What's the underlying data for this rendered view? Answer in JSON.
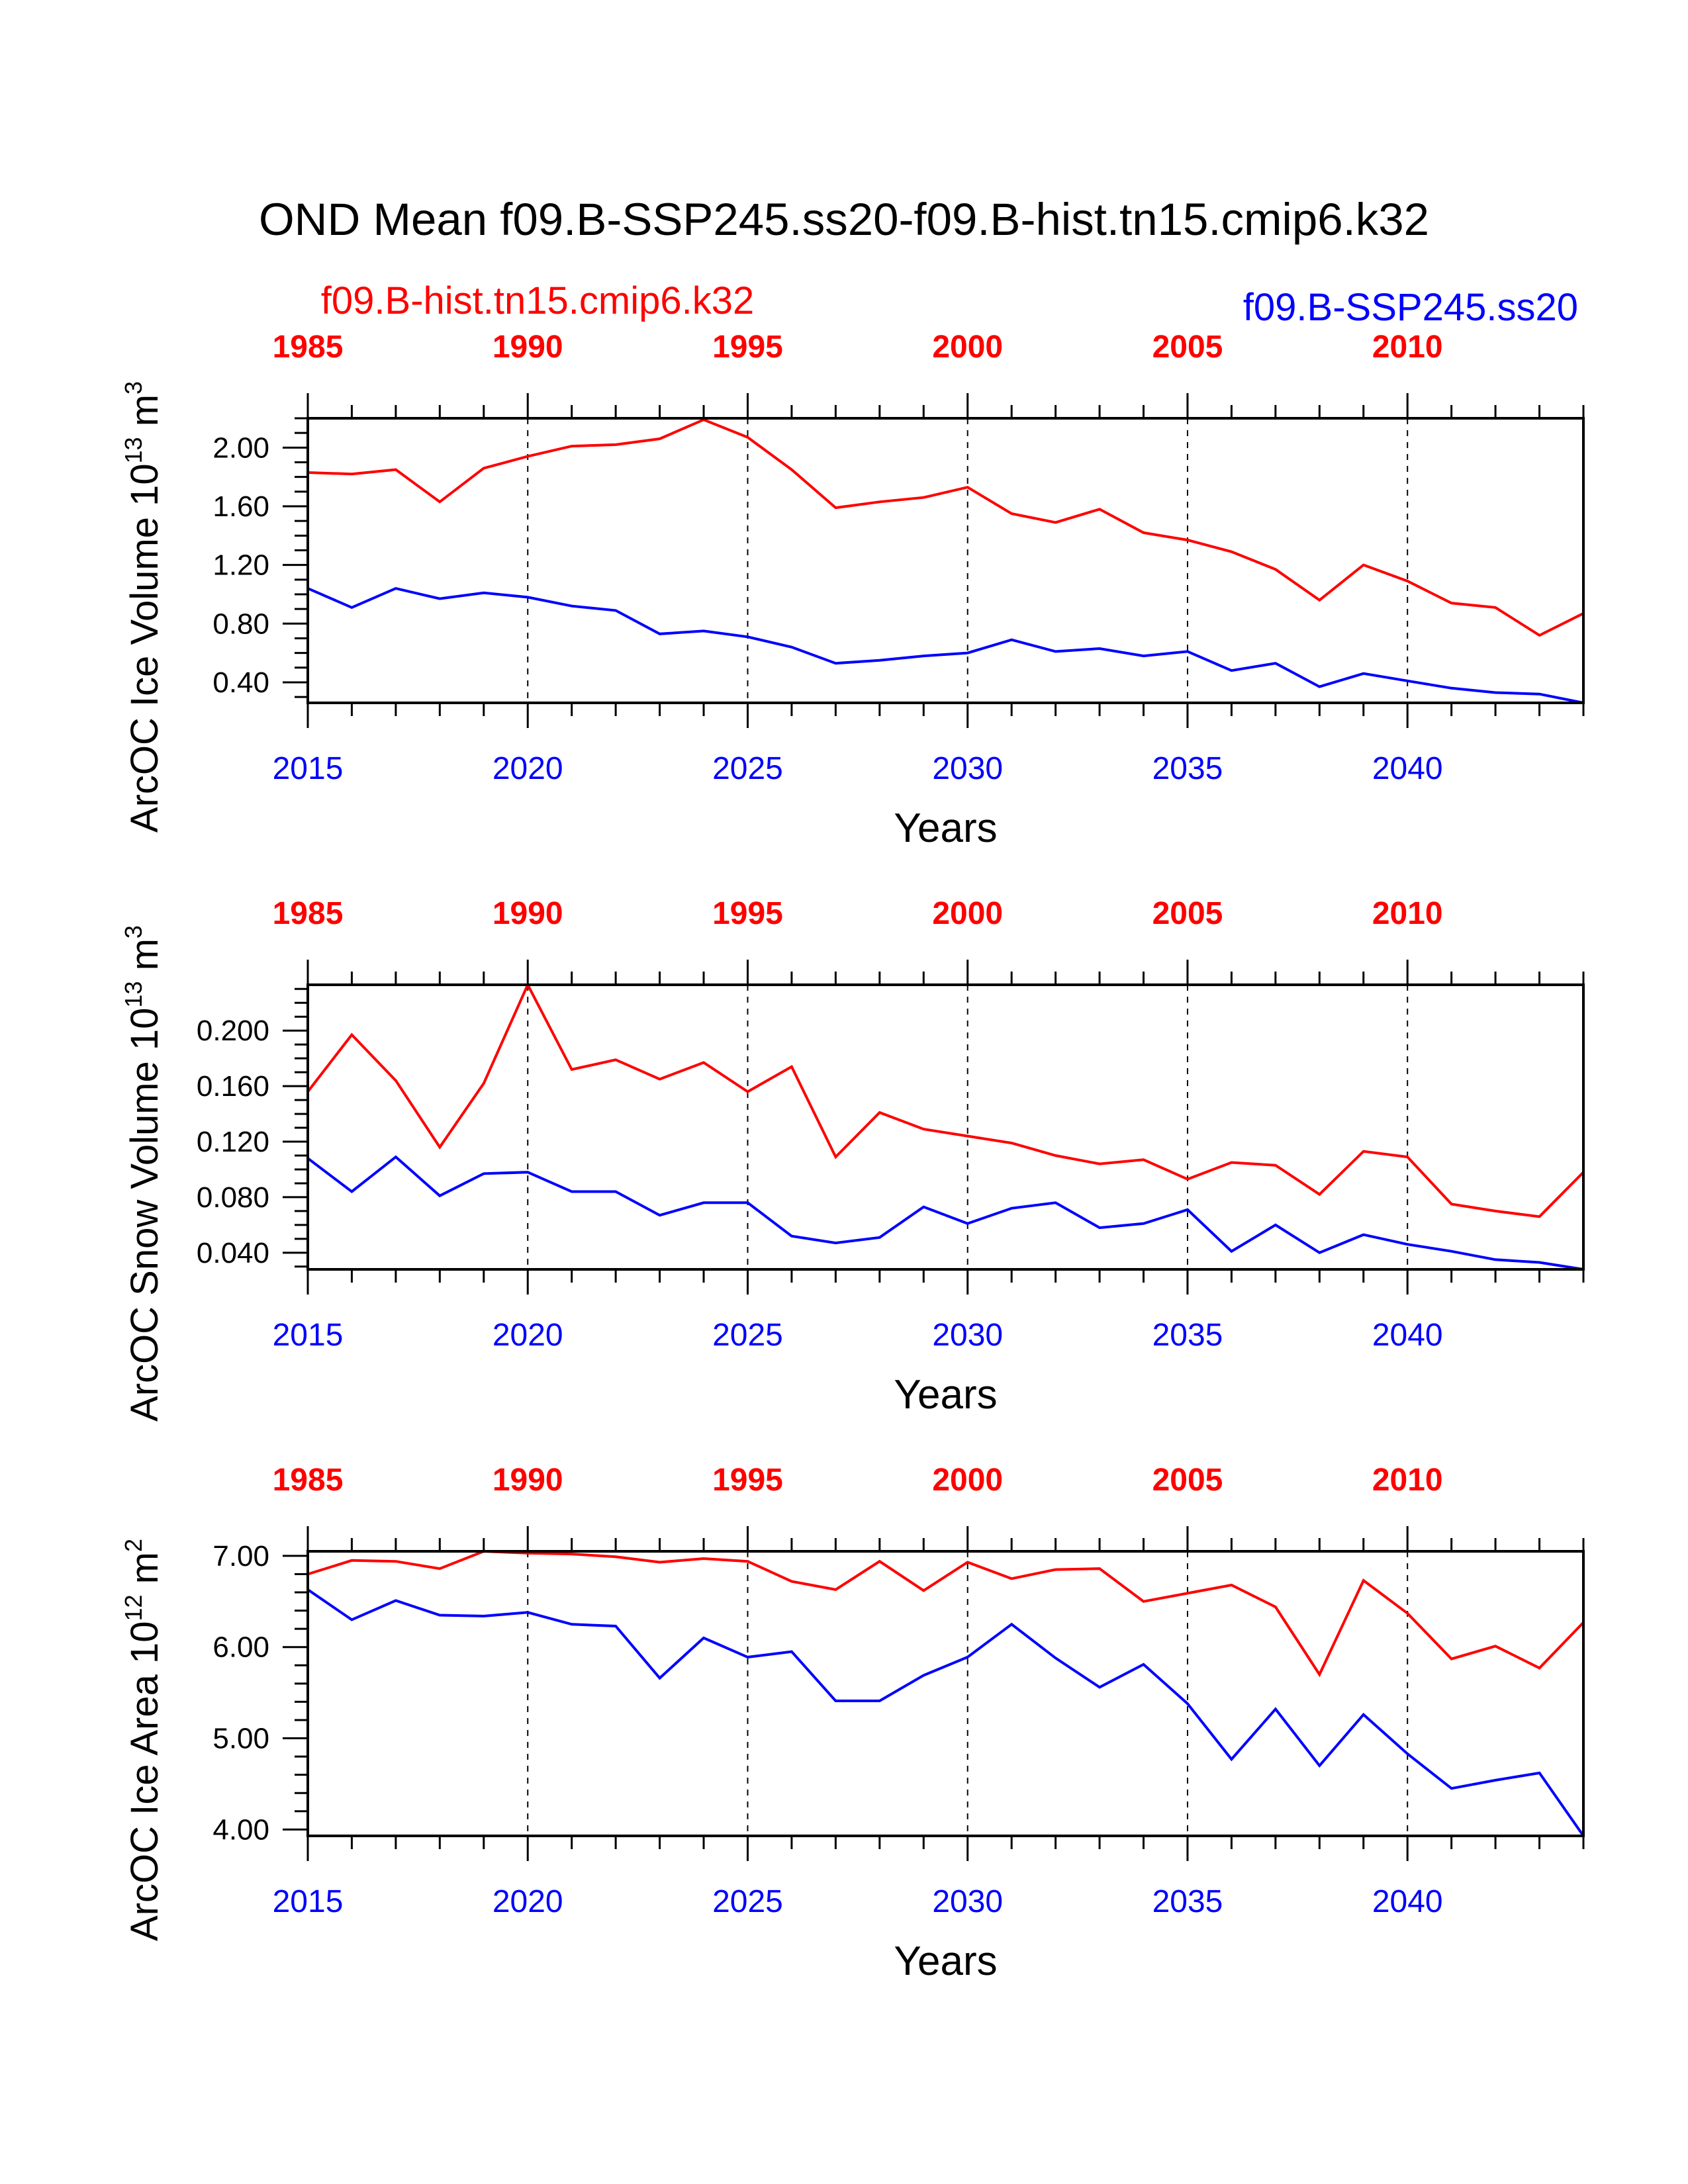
{
  "title": "OND Mean f09.B-SSP245.ss20-f09.B-hist.tn15.cmip6.k32",
  "cases": {
    "historical": {
      "label": "f09.B-hist.tn15.cmip6.k32",
      "color": "#ff0000"
    },
    "scenario": {
      "label": "f09.B-SSP245.ss20",
      "color": "#0000ff"
    }
  },
  "panels": [
    {
      "ylabel": {
        "main": "ArcOC Ice Volume 10",
        "exp": "13",
        "unit": " m",
        "unit_exp": "3"
      },
      "xlabel": "Years"
    },
    {
      "ylabel": {
        "main": "ArcOC Snow Volume 10",
        "exp": "13",
        "unit": " m",
        "unit_exp": "3"
      },
      "xlabel": "Years"
    },
    {
      "ylabel": {
        "main": "ArcOC Ice Area 10",
        "exp": "12",
        "unit": " m",
        "unit_exp": "2"
      },
      "xlabel": "Years"
    }
  ],
  "chart_data": [
    {
      "type": "line",
      "ylabel": "ArcOC Ice Volume 10^13 m^3",
      "xlabel": "Years",
      "x_bottom": {
        "range": [
          2015,
          2044
        ],
        "ticks": [
          "2015",
          "2020",
          "2025",
          "2030",
          "2035",
          "2040"
        ],
        "color": "#0000ff"
      },
      "x_top": {
        "range": [
          1985,
          2014
        ],
        "ticks": [
          "1985",
          "1990",
          "1995",
          "2000",
          "2005",
          "2010"
        ],
        "color": "#ff0000"
      },
      "ylim": [
        0.26,
        2.2
      ],
      "y_ticks": [
        "0.40",
        "0.80",
        "1.20",
        "1.60",
        "2.00"
      ],
      "y_tick_values": [
        0.4,
        0.8,
        1.2,
        1.6,
        2.0
      ],
      "y_minor_step": 0.1,
      "grid": "dashed vertical lines at major x ticks",
      "series": [
        {
          "name": "f09.B-hist.tn15.cmip6.k32",
          "color": "#ff0000",
          "x": [
            1985,
            1986,
            1987,
            1988,
            1989,
            1990,
            1991,
            1992,
            1993,
            1994,
            1995,
            1996,
            1997,
            1998,
            1999,
            2000,
            2001,
            2002,
            2003,
            2004,
            2005,
            2006,
            2007,
            2008,
            2009,
            2010,
            2011,
            2012,
            2013,
            2014
          ],
          "values": [
            1.83,
            1.82,
            1.85,
            1.63,
            1.86,
            1.94,
            2.01,
            2.02,
            2.06,
            2.19,
            2.07,
            1.85,
            1.59,
            1.63,
            1.66,
            1.73,
            1.55,
            1.49,
            1.58,
            1.42,
            1.37,
            1.29,
            1.17,
            0.96,
            1.2,
            1.09,
            0.94,
            0.91,
            0.72,
            0.87
          ]
        },
        {
          "name": "f09.B-SSP245.ss20",
          "color": "#0000ff",
          "x": [
            2015,
            2016,
            2017,
            2018,
            2019,
            2020,
            2021,
            2022,
            2023,
            2024,
            2025,
            2026,
            2027,
            2028,
            2029,
            2030,
            2031,
            2032,
            2033,
            2034,
            2035,
            2036,
            2037,
            2038,
            2039,
            2040,
            2041,
            2042,
            2043,
            2044
          ],
          "values": [
            1.04,
            0.91,
            1.04,
            0.97,
            1.01,
            0.98,
            0.92,
            0.89,
            0.73,
            0.75,
            0.71,
            0.64,
            0.53,
            0.55,
            0.58,
            0.6,
            0.69,
            0.61,
            0.63,
            0.58,
            0.61,
            0.48,
            0.53,
            0.37,
            0.46,
            0.41,
            0.36,
            0.33,
            0.32,
            0.26
          ]
        }
      ]
    },
    {
      "type": "line",
      "ylabel": "ArcOC Snow Volume 10^13 m^3",
      "xlabel": "Years",
      "x_bottom": {
        "range": [
          2015,
          2044
        ],
        "ticks": [
          "2015",
          "2020",
          "2025",
          "2030",
          "2035",
          "2040"
        ],
        "color": "#0000ff"
      },
      "x_top": {
        "range": [
          1985,
          2014
        ],
        "ticks": [
          "1985",
          "1990",
          "1995",
          "2000",
          "2005",
          "2010"
        ],
        "color": "#ff0000"
      },
      "ylim": [
        0.028,
        0.233
      ],
      "y_ticks": [
        "0.040",
        "0.080",
        "0.120",
        "0.160",
        "0.200"
      ],
      "y_tick_values": [
        0.04,
        0.08,
        0.12,
        0.16,
        0.2
      ],
      "y_minor_step": 0.01,
      "grid": "dashed vertical lines at major x ticks",
      "series": [
        {
          "name": "f09.B-hist.tn15.cmip6.k32",
          "color": "#ff0000",
          "x": [
            1985,
            1986,
            1987,
            1988,
            1989,
            1990,
            1991,
            1992,
            1993,
            1994,
            1995,
            1996,
            1997,
            1998,
            1999,
            2000,
            2001,
            2002,
            2003,
            2004,
            2005,
            2006,
            2007,
            2008,
            2009,
            2010,
            2011,
            2012,
            2013,
            2014
          ],
          "values": [
            0.156,
            0.197,
            0.164,
            0.116,
            0.162,
            0.233,
            0.172,
            0.179,
            0.165,
            0.177,
            0.156,
            0.174,
            0.109,
            0.141,
            0.129,
            0.124,
            0.119,
            0.11,
            0.104,
            0.107,
            0.093,
            0.105,
            0.103,
            0.082,
            0.113,
            0.109,
            0.075,
            0.07,
            0.066,
            0.098
          ]
        },
        {
          "name": "f09.B-SSP245.ss20",
          "color": "#0000ff",
          "x": [
            2015,
            2016,
            2017,
            2018,
            2019,
            2020,
            2021,
            2022,
            2023,
            2024,
            2025,
            2026,
            2027,
            2028,
            2029,
            2030,
            2031,
            2032,
            2033,
            2034,
            2035,
            2036,
            2037,
            2038,
            2039,
            2040,
            2041,
            2042,
            2043,
            2044
          ],
          "values": [
            0.108,
            0.084,
            0.109,
            0.081,
            0.097,
            0.098,
            0.084,
            0.084,
            0.067,
            0.076,
            0.076,
            0.052,
            0.047,
            0.051,
            0.073,
            0.061,
            0.072,
            0.076,
            0.058,
            0.061,
            0.071,
            0.041,
            0.06,
            0.04,
            0.053,
            0.046,
            0.041,
            0.035,
            0.033,
            0.028
          ]
        }
      ]
    },
    {
      "type": "line",
      "ylabel": "ArcOC Ice Area 10^12 m^2",
      "xlabel": "Years",
      "x_bottom": {
        "range": [
          2015,
          2044
        ],
        "ticks": [
          "2015",
          "2020",
          "2025",
          "2030",
          "2035",
          "2040"
        ],
        "color": "#0000ff"
      },
      "x_top": {
        "range": [
          1985,
          2014
        ],
        "ticks": [
          "1985",
          "1990",
          "1995",
          "2000",
          "2005",
          "2010"
        ],
        "color": "#ff0000"
      },
      "ylim": [
        3.93,
        7.05
      ],
      "y_ticks": [
        "4.00",
        "5.00",
        "6.00",
        "7.00"
      ],
      "y_tick_values": [
        4.0,
        5.0,
        6.0,
        7.0
      ],
      "y_minor_step": 0.2,
      "grid": "dashed vertical lines at major x ticks",
      "series": [
        {
          "name": "f09.B-hist.tn15.cmip6.k32",
          "color": "#ff0000",
          "x": [
            1985,
            1986,
            1987,
            1988,
            1989,
            1990,
            1991,
            1992,
            1993,
            1994,
            1995,
            1996,
            1997,
            1998,
            1999,
            2000,
            2001,
            2002,
            2003,
            2004,
            2005,
            2006,
            2007,
            2008,
            2009,
            2010,
            2011,
            2012,
            2013,
            2014
          ],
          "values": [
            6.8,
            6.95,
            6.94,
            6.86,
            7.05,
            7.03,
            7.02,
            6.99,
            6.93,
            6.97,
            6.94,
            6.72,
            6.63,
            6.94,
            6.62,
            6.93,
            6.75,
            6.85,
            6.86,
            6.5,
            6.59,
            6.68,
            6.44,
            5.7,
            6.73,
            6.37,
            5.87,
            6.01,
            5.77,
            6.27
          ]
        },
        {
          "name": "f09.B-SSP245.ss20",
          "color": "#0000ff",
          "x": [
            2015,
            2016,
            2017,
            2018,
            2019,
            2020,
            2021,
            2022,
            2023,
            2024,
            2025,
            2026,
            2027,
            2028,
            2029,
            2030,
            2031,
            2032,
            2033,
            2034,
            2035,
            2036,
            2037,
            2038,
            2039,
            2040,
            2041,
            2042,
            2043,
            2044
          ],
          "values": [
            6.63,
            6.3,
            6.51,
            6.35,
            6.34,
            6.38,
            6.25,
            6.23,
            5.66,
            6.1,
            5.89,
            5.95,
            5.41,
            5.41,
            5.69,
            5.89,
            6.25,
            5.88,
            5.56,
            5.81,
            5.38,
            4.77,
            5.32,
            4.7,
            5.26,
            4.83,
            4.45,
            4.54,
            4.62,
            3.93
          ]
        }
      ]
    }
  ]
}
